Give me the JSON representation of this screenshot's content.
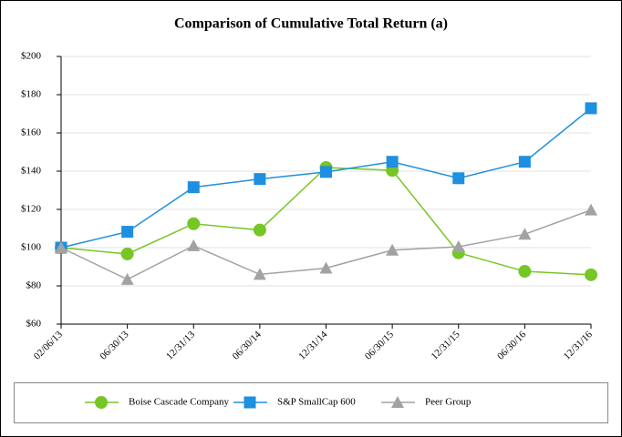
{
  "chart_data": {
    "type": "line",
    "title": "Comparison of Cumulative Total Return (a)",
    "categories": [
      "02/06/13",
      "06/30/13",
      "12/31/13",
      "06/30/14",
      "12/31/14",
      "06/30/15",
      "12/31/15",
      "06/30/16",
      "12/31/16"
    ],
    "series": [
      {
        "name": "Boise Cascade Company",
        "color": "#76c626",
        "marker": "circle",
        "values": [
          100,
          96.7,
          112.5,
          109.2,
          141.9,
          140.4,
          97.3,
          87.6,
          85.8
        ]
      },
      {
        "name": "S&P SmallCap 600",
        "color": "#1f8fe0",
        "marker": "square",
        "values": [
          100,
          108.3,
          131.6,
          135.9,
          139.6,
          144.9,
          136.3,
          144.9,
          172.9
        ]
      },
      {
        "name": "Peer Group",
        "color": "#a2a2a2",
        "marker": "triangle",
        "values": [
          100,
          83.4,
          101,
          86,
          89.3,
          98.7,
          100.5,
          107,
          119.7
        ]
      }
    ],
    "ylim": [
      60,
      200
    ],
    "yticks": [
      {
        "value": 60,
        "label": "$60"
      },
      {
        "value": 80,
        "label": "$80"
      },
      {
        "value": 100,
        "label": "$100"
      },
      {
        "value": 120,
        "label": "$120"
      },
      {
        "value": 140,
        "label": "$140"
      },
      {
        "value": 160,
        "label": "$160"
      },
      {
        "value": 180,
        "label": "$180"
      },
      {
        "value": 200,
        "label": "$200"
      }
    ],
    "grid": true,
    "legend": "bottom"
  }
}
